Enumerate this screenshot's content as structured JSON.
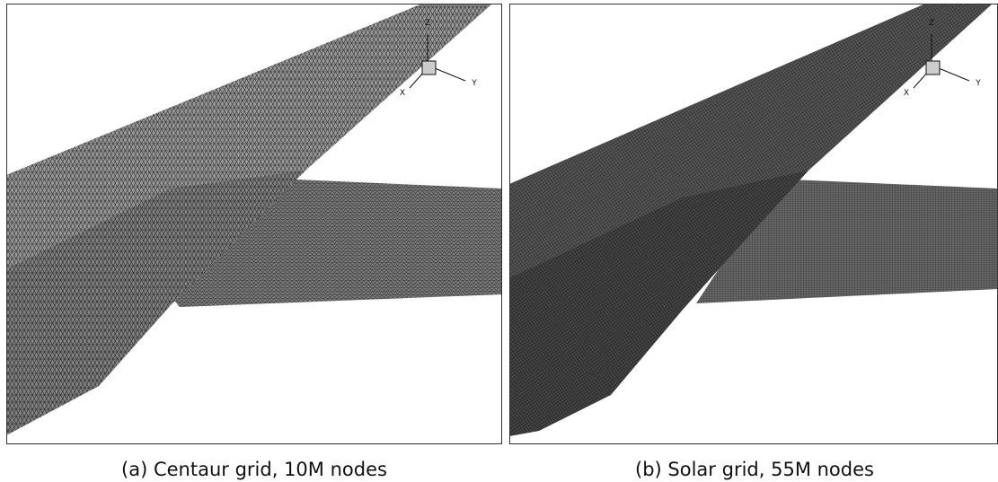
{
  "panels": [
    {
      "caption": "(a) Centaur grid, 10M nodes",
      "axes": {
        "z": "Z",
        "y": "Y",
        "x": "X"
      }
    },
    {
      "caption": "(b) Solar grid, 55M nodes",
      "axes": {
        "z": "Z",
        "y": "Y",
        "x": "X"
      }
    }
  ]
}
